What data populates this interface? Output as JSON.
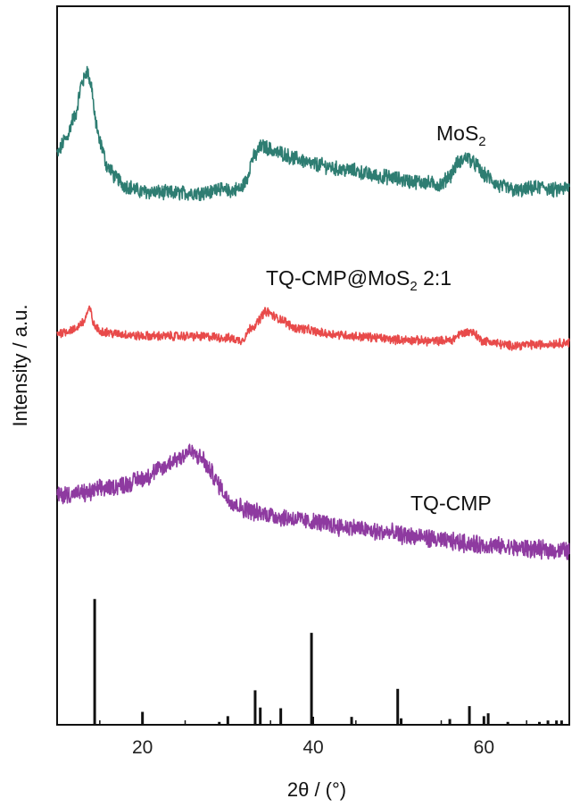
{
  "chart_data": {
    "type": "line",
    "xlabel": "2θ / (°)",
    "ylabel": "Intensity / a.u.",
    "xlim": [
      10,
      70
    ],
    "ylim": [
      0,
      100
    ],
    "xticks": [
      20,
      40,
      60
    ],
    "grid": false,
    "y_tick_labels": false,
    "series": [
      {
        "name": "MoS2",
        "label_main": "MoS",
        "label_sub": "2",
        "label_suffix": "",
        "color": "#2e7d72",
        "noise": 0.9,
        "points": [
          [
            10,
            79.5
          ],
          [
            11,
            81.5
          ],
          [
            12,
            84.5
          ],
          [
            13,
            89.5
          ],
          [
            13.5,
            91
          ],
          [
            14,
            89
          ],
          [
            14.5,
            84
          ],
          [
            15,
            81
          ],
          [
            16,
            77.5
          ],
          [
            17,
            76
          ],
          [
            18,
            75
          ],
          [
            20,
            74.2
          ],
          [
            24,
            74
          ],
          [
            28,
            74.1
          ],
          [
            29,
            75
          ],
          [
            29.3,
            74.3
          ],
          [
            30,
            74.3
          ],
          [
            31.5,
            74.6
          ],
          [
            32,
            75.5
          ],
          [
            33,
            79
          ],
          [
            34,
            80.5
          ],
          [
            36,
            79.6
          ],
          [
            38,
            78.8
          ],
          [
            40,
            78
          ],
          [
            44,
            77.2
          ],
          [
            48,
            76.3
          ],
          [
            52,
            75.6
          ],
          [
            55,
            75.2
          ],
          [
            56,
            76.5
          ],
          [
            57,
            78.2
          ],
          [
            58,
            79
          ],
          [
            59,
            78
          ],
          [
            60,
            76.5
          ],
          [
            62,
            74.9
          ],
          [
            64,
            74.3
          ],
          [
            66,
            74.7
          ],
          [
            67,
            74.9
          ],
          [
            68,
            74.4
          ],
          [
            70,
            74.7
          ]
        ]
      },
      {
        "name": "TQ-CMP@MoS2 2:1",
        "label_main": "TQ-CMP@MoS",
        "label_sub": "2",
        "label_suffix": " 2:1",
        "color": "#e84a4a",
        "noise": 0.55,
        "points": [
          [
            10,
            54.5
          ],
          [
            12,
            55
          ],
          [
            13,
            56
          ],
          [
            13.8,
            57.8
          ],
          [
            14.4,
            55.5
          ],
          [
            15,
            54.8
          ],
          [
            17,
            54.4
          ],
          [
            20,
            54.1
          ],
          [
            25,
            54.1
          ],
          [
            28,
            54
          ],
          [
            30,
            53.8
          ],
          [
            31.5,
            53.5
          ],
          [
            33,
            55.5
          ],
          [
            34.5,
            57.5
          ],
          [
            36,
            56.5
          ],
          [
            38,
            55.2
          ],
          [
            42,
            54.4
          ],
          [
            46,
            54
          ],
          [
            50,
            53.6
          ],
          [
            54,
            53.4
          ],
          [
            56,
            53.5
          ],
          [
            57.5,
            54.5
          ],
          [
            58.5,
            54.7
          ],
          [
            60,
            53.4
          ],
          [
            63,
            52.8
          ],
          [
            66,
            52.9
          ],
          [
            70,
            53.2
          ]
        ]
      },
      {
        "name": "TQ-CMP",
        "label_main": "TQ-CMP",
        "label_sub": "",
        "label_suffix": "",
        "color": "#8e3aa0",
        "noise": 1.1,
        "points": [
          [
            10,
            32
          ],
          [
            13,
            32.2
          ],
          [
            16,
            33
          ],
          [
            18,
            33.5
          ],
          [
            20,
            34.3
          ],
          [
            22,
            35.5
          ],
          [
            24,
            37
          ],
          [
            25.5,
            38
          ],
          [
            27,
            37
          ],
          [
            28,
            35.2
          ],
          [
            29,
            33.3
          ],
          [
            30,
            31.5
          ],
          [
            31,
            30.6
          ],
          [
            32,
            30
          ],
          [
            34,
            29.4
          ],
          [
            37,
            28.8
          ],
          [
            40,
            28.2
          ],
          [
            44,
            27.5
          ],
          [
            48,
            26.8
          ],
          [
            52,
            26.2
          ],
          [
            56,
            25.5
          ],
          [
            60,
            25
          ],
          [
            64,
            24.6
          ],
          [
            68,
            24.3
          ],
          [
            70,
            24.2
          ]
        ]
      }
    ],
    "reference_sticks": {
      "color": "#111111",
      "baseline": 0,
      "x": [
        14.4,
        20,
        29,
        30,
        33.2,
        33.8,
        36.2,
        39.8,
        44.5,
        49.9,
        50.3,
        56,
        58.3,
        60,
        60.5,
        62.8,
        66.5,
        67.5,
        68.5,
        69.1
      ],
      "heights": [
        17.5,
        1.8,
        0.4,
        1.2,
        4.8,
        2.4,
        2.3,
        12.8,
        1.1,
        5.0,
        0.9,
        0.8,
        2.6,
        1.2,
        1.6,
        0.4,
        0.4,
        0.6,
        0.6,
        0.6
      ]
    }
  }
}
